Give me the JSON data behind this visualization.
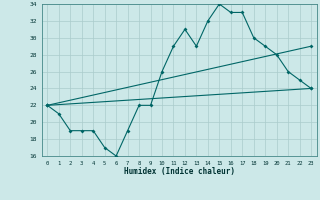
{
  "title": "",
  "xlabel": "Humidex (Indice chaleur)",
  "ylabel": "",
  "bg_color": "#cce8e8",
  "grid_color": "#aacccc",
  "line_color": "#006666",
  "xlim": [
    -0.5,
    23.5
  ],
  "ylim": [
    16,
    34
  ],
  "xticks": [
    0,
    1,
    2,
    3,
    4,
    5,
    6,
    7,
    8,
    9,
    10,
    11,
    12,
    13,
    14,
    15,
    16,
    17,
    18,
    19,
    20,
    21,
    22,
    23
  ],
  "yticks": [
    16,
    18,
    20,
    22,
    24,
    26,
    28,
    30,
    32,
    34
  ],
  "line1_x": [
    0,
    1,
    2,
    3,
    4,
    5,
    6,
    7,
    8,
    9,
    10,
    11,
    12,
    13,
    14,
    15,
    16,
    17,
    18,
    19,
    20,
    21,
    22,
    23
  ],
  "line1_y": [
    22,
    21,
    19,
    19,
    19,
    17,
    16,
    19,
    22,
    22,
    26,
    29,
    31,
    29,
    32,
    34,
    33,
    33,
    30,
    29,
    28,
    26,
    25,
    24
  ],
  "line2_x": [
    0,
    23
  ],
  "line2_y": [
    22,
    24
  ],
  "line3_x": [
    0,
    23
  ],
  "line3_y": [
    22,
    29
  ],
  "marker": "D",
  "marker_size": 2.0,
  "linewidth": 0.8
}
